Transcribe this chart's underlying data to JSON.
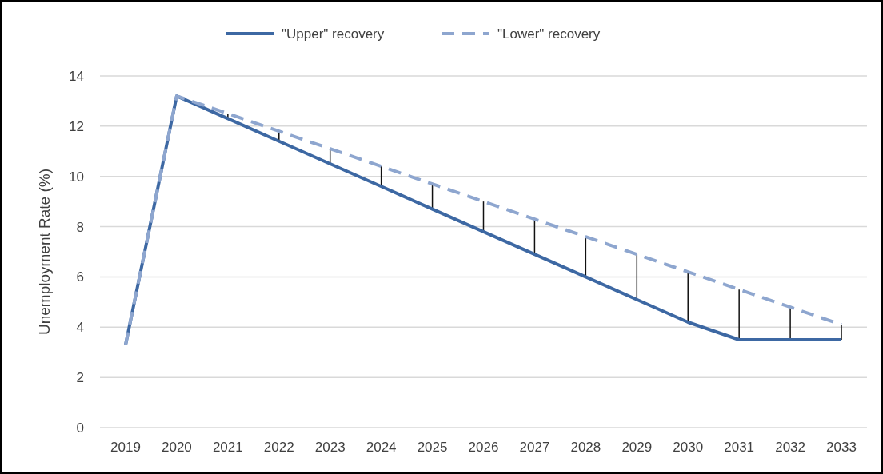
{
  "chart_data": {
    "type": "line",
    "ylabel": "Unemployment Rate (%)",
    "categories": [
      "2019",
      "2020",
      "2021",
      "2022",
      "2023",
      "2024",
      "2025",
      "2026",
      "2027",
      "2028",
      "2029",
      "2030",
      "2031",
      "2032",
      "2033"
    ],
    "series": [
      {
        "name": "\"Upper\" recovery",
        "color": "#3d68a3",
        "line_style": "solid",
        "values": [
          3.3,
          13.2,
          12.3,
          11.4,
          10.5,
          9.6,
          8.7,
          7.8,
          6.9,
          6.0,
          5.1,
          4.2,
          3.5,
          3.5,
          3.5
        ]
      },
      {
        "name": "\"Lower\" recovery",
        "color": "#8ea6cf",
        "line_style": "dashed",
        "values": [
          3.3,
          13.2,
          12.5,
          11.8,
          11.1,
          10.4,
          9.7,
          9.0,
          8.3,
          7.6,
          6.9,
          6.2,
          5.5,
          4.8,
          4.1
        ]
      }
    ],
    "ylim": [
      0,
      14
    ],
    "yticks": [
      0,
      2,
      4,
      6,
      8,
      10,
      12,
      14
    ],
    "grid": "y",
    "legend": "top"
  }
}
